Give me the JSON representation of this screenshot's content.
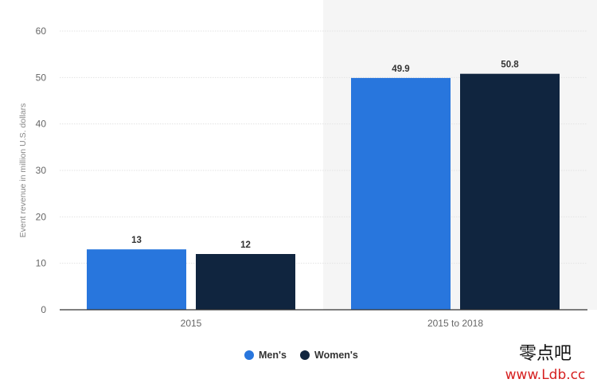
{
  "chart_data": {
    "type": "bar",
    "categories": [
      "2015",
      "2015 to 2018"
    ],
    "series": [
      {
        "name": "Men's",
        "values": [
          13,
          49.9
        ],
        "color": "#2876dd"
      },
      {
        "name": "Women's",
        "values": [
          12,
          50.8
        ],
        "color": "#10253f"
      }
    ],
    "data_labels": [
      [
        "13",
        "49.9"
      ],
      [
        "12",
        "50.8"
      ]
    ],
    "ylabel": "Event revenue in million U.S. dollars",
    "ylim": [
      0,
      60
    ],
    "yticks": [
      0,
      10,
      20,
      30,
      40,
      50,
      60
    ],
    "grid": true,
    "legend_position": "bottom-center",
    "highlighted_category": "2015 to 2018"
  },
  "watermark": {
    "chinese_text": "零点吧",
    "url_text": "www.Ldb.cc"
  },
  "colors": {
    "highlight_background": "#f5f5f5",
    "gridline": "#e3e3e3",
    "axis_line": "#333333",
    "watermark_url": "#d62020"
  }
}
